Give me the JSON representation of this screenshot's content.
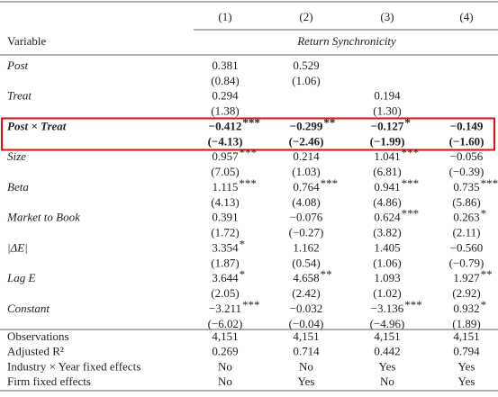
{
  "header": {
    "columns": [
      "(1)",
      "(2)",
      "(3)",
      "(4)"
    ],
    "row_label": "Variable",
    "dependent": "Return Synchronicity"
  },
  "rows": [
    {
      "label": "Post",
      "coef": [
        {
          "v": "0.381"
        },
        {
          "v": "0.529"
        },
        null,
        null
      ],
      "t": [
        "(0.84)",
        "(1.06)",
        null,
        null
      ]
    },
    {
      "label": "Treat",
      "coef": [
        {
          "v": "0.294"
        },
        null,
        {
          "v": "0.194"
        },
        null
      ],
      "t": [
        "(1.38)",
        null,
        "(1.30)",
        null
      ]
    },
    {
      "label": "Post × Treat",
      "bold": true,
      "highlight": true,
      "coef": [
        {
          "v": "−0.412",
          "stars": "***"
        },
        {
          "v": "−0.299",
          "stars": "**"
        },
        {
          "v": "−0.127",
          "stars": "*"
        },
        {
          "v": "−0.149"
        }
      ],
      "t": [
        "(−4.13)",
        "(−2.46)",
        "(−1.99)",
        "(−1.60)"
      ]
    },
    {
      "label": "Size",
      "coef": [
        {
          "v": "0.957",
          "stars": "***"
        },
        {
          "v": "0.214"
        },
        {
          "v": "1.041",
          "stars": "***"
        },
        {
          "v": "−0.056"
        }
      ],
      "t": [
        "(7.05)",
        "(1.03)",
        "(6.81)",
        "(−0.39)"
      ]
    },
    {
      "label": "Beta",
      "coef": [
        {
          "v": "1.115",
          "stars": "***"
        },
        {
          "v": "0.764",
          "stars": "***"
        },
        {
          "v": "0.941",
          "stars": "***"
        },
        {
          "v": "0.735",
          "stars": "***"
        }
      ],
      "t": [
        "(4.13)",
        "(4.08)",
        "(4.86)",
        "(5.86)"
      ]
    },
    {
      "label": "Market to Book",
      "coef": [
        {
          "v": "0.391"
        },
        {
          "v": "−0.076"
        },
        {
          "v": "0.624",
          "stars": "***"
        },
        {
          "v": "0.263",
          "stars": "*"
        }
      ],
      "t": [
        "(1.72)",
        "(−0.27)",
        "(3.82)",
        "(2.11)"
      ]
    },
    {
      "label": "|ΔE|",
      "coef": [
        {
          "v": "3.354",
          "stars": "*"
        },
        {
          "v": "1.162"
        },
        {
          "v": "1.405"
        },
        {
          "v": "−0.560"
        }
      ],
      "t": [
        "(1.87)",
        "(0.54)",
        "(1.06)",
        "(−0.79)"
      ]
    },
    {
      "label": "Lag E",
      "coef": [
        {
          "v": "3.644",
          "stars": "*"
        },
        {
          "v": "4.658",
          "stars": "**"
        },
        {
          "v": "1.093"
        },
        {
          "v": "1.927",
          "stars": "**"
        }
      ],
      "t": [
        "(2.05)",
        "(2.42)",
        "(1.02)",
        "(2.92)"
      ]
    },
    {
      "label": "Constant",
      "coef": [
        {
          "v": "−3.211",
          "stars": "***"
        },
        {
          "v": "−0.032"
        },
        {
          "v": "−3.136",
          "stars": "***"
        },
        {
          "v": "0.932",
          "stars": "*"
        }
      ],
      "t": [
        "(−6.02)",
        "(−0.04)",
        "(−4.96)",
        "(1.89)"
      ]
    }
  ],
  "stats": [
    {
      "label": "Observations",
      "values": [
        "4,151",
        "4,151",
        "4,151",
        "4,151"
      ]
    },
    {
      "label": "Adjusted R²",
      "values": [
        "0.269",
        "0.714",
        "0.442",
        "0.794"
      ]
    },
    {
      "label": "Industry × Year fixed effects",
      "values": [
        "No",
        "No",
        "Yes",
        "Yes"
      ]
    },
    {
      "label": "Firm fixed effects",
      "values": [
        "No",
        "Yes",
        "No",
        "Yes"
      ]
    }
  ]
}
